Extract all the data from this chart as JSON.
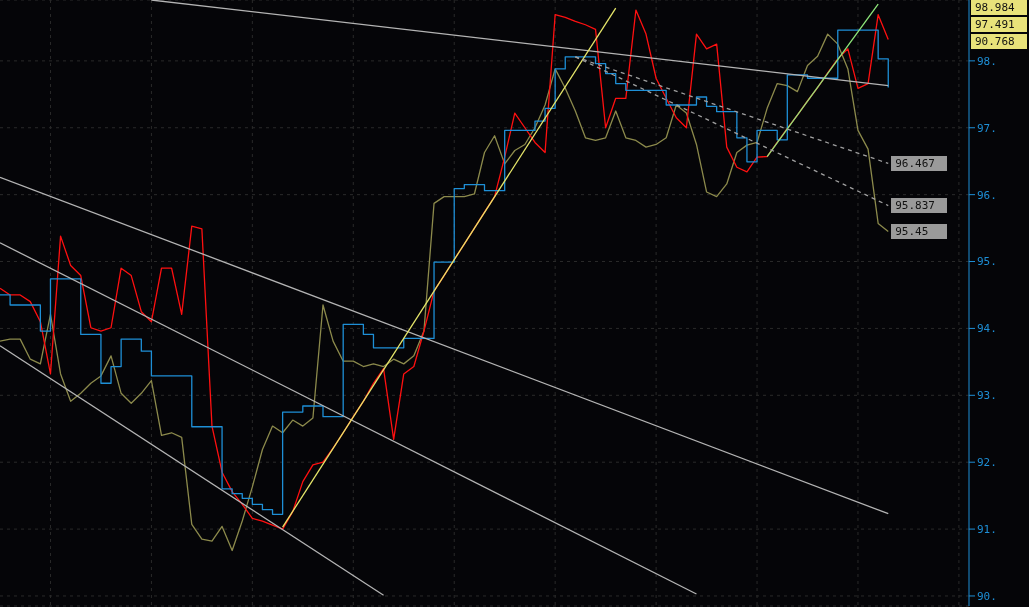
{
  "chart_data": {
    "type": "line",
    "categories": [
      null,
      null,
      null,
      null,
      null,
      null,
      null,
      null,
      null,
      null,
      null,
      null,
      null,
      null,
      null,
      null,
      null,
      null,
      null,
      null,
      null,
      null,
      null,
      null,
      null,
      null,
      null,
      null,
      null,
      null,
      null,
      null,
      null,
      null,
      null,
      null,
      null,
      null,
      null,
      null,
      null,
      null,
      null,
      null,
      null,
      null,
      null,
      null,
      null,
      null,
      null,
      null,
      null,
      null,
      null,
      null,
      null,
      null,
      null,
      null,
      null,
      null,
      null,
      null,
      null,
      null,
      null,
      null,
      null,
      null,
      null,
      null,
      null,
      null,
      null,
      null,
      null,
      null,
      null,
      null,
      null,
      null,
      null,
      null,
      null,
      null,
      null,
      null,
      null
    ],
    "series": [
      {
        "type": "line",
        "color": "#8c8a4c",
        "values": [
          93.81,
          93.84,
          93.84,
          93.54,
          93.47,
          94.21,
          93.32,
          92.91,
          93.03,
          93.18,
          93.29,
          93.59,
          93.03,
          92.88,
          93.03,
          93.22,
          92.4,
          92.44,
          92.37,
          91.07,
          90.85,
          90.82,
          91.04,
          90.68,
          91.12,
          91.63,
          92.19,
          92.54,
          92.44,
          92.63,
          92.54,
          92.66,
          94.35,
          93.81,
          93.51,
          93.51,
          93.43,
          93.47,
          93.43,
          93.54,
          93.47,
          93.59,
          93.96,
          95.87,
          95.97,
          95.97,
          95.97,
          96.01,
          96.63,
          96.88,
          96.46,
          96.66,
          96.75,
          97.0,
          97.34,
          97.88,
          97.59,
          97.25,
          96.85,
          96.81,
          96.85,
          97.25,
          96.85,
          96.81,
          96.71,
          96.75,
          96.85,
          97.34,
          97.22,
          96.75,
          96.04,
          95.97,
          96.16,
          96.63,
          96.74,
          96.78,
          97.29,
          97.66,
          97.63,
          97.54,
          97.93,
          98.07,
          98.4,
          98.25,
          97.88,
          96.96,
          96.68,
          95.57,
          95.45
        ],
        "value_labels": [
          null,
          null,
          null,
          null,
          null,
          null,
          null,
          null,
          null,
          null,
          null,
          null,
          null,
          null,
          null,
          null,
          null,
          null,
          null,
          null,
          null,
          null,
          null,
          null,
          null,
          null,
          null,
          null,
          null,
          null,
          null,
          null,
          null,
          null,
          null,
          null,
          null,
          null,
          null,
          null,
          null,
          null,
          null,
          null,
          null,
          null,
          null,
          null,
          null,
          null,
          null,
          null,
          null,
          null,
          null,
          null,
          null,
          null,
          null,
          null,
          null,
          null,
          null,
          null,
          null,
          null,
          null,
          null,
          null,
          null,
          null,
          null,
          null,
          null,
          null,
          null,
          null,
          null,
          null,
          null,
          null,
          null,
          null,
          null,
          null,
          null,
          null,
          null,
          "95.45"
        ]
      },
      {
        "type": "line",
        "color": "#ff1010",
        "values": [
          94.6,
          94.5,
          94.5,
          94.4,
          94.1,
          93.32,
          95.38,
          94.94,
          94.79,
          94.01,
          93.96,
          94.01,
          94.9,
          94.79,
          94.25,
          94.1,
          94.9,
          94.9,
          94.21,
          95.53,
          95.49,
          92.54,
          91.85,
          91.56,
          91.37,
          91.16,
          91.12,
          91.06,
          91.0,
          91.26,
          91.71,
          91.96,
          92.0,
          92.21,
          92.44,
          92.68,
          92.91,
          93.18,
          93.4,
          92.34,
          93.32,
          93.43,
          93.96,
          94.56,
          94.79,
          95.03,
          95.26,
          95.5,
          95.74,
          95.97,
          96.56,
          97.22,
          97.0,
          96.78,
          96.63,
          98.69,
          98.65,
          98.59,
          98.54,
          98.47,
          97.0,
          97.44,
          97.44,
          98.76,
          98.4,
          97.74,
          97.44,
          97.15,
          97.0,
          98.4,
          98.18,
          98.25,
          96.71,
          96.41,
          96.34,
          96.56,
          96.57,
          96.78,
          96.99,
          97.19,
          97.4,
          97.6,
          97.82,
          98.03,
          98.18,
          97.59,
          97.66,
          98.69,
          98.32
        ]
      },
      {
        "type": "step",
        "color": "#1e8fd6",
        "values": [
          94.5,
          94.35,
          94.35,
          94.35,
          93.96,
          94.74,
          94.74,
          94.74,
          93.91,
          93.91,
          93.18,
          93.43,
          93.84,
          93.84,
          93.66,
          93.29,
          93.29,
          93.29,
          93.29,
          92.53,
          92.53,
          92.53,
          91.6,
          91.53,
          91.46,
          91.37,
          91.29,
          91.22,
          92.75,
          92.75,
          92.84,
          92.84,
          92.68,
          92.68,
          94.06,
          94.06,
          93.91,
          93.71,
          93.71,
          93.71,
          93.85,
          93.85,
          93.85,
          94.99,
          94.99,
          96.09,
          96.15,
          96.15,
          96.06,
          96.06,
          96.96,
          96.96,
          96.96,
          97.1,
          97.29,
          97.88,
          98.06,
          98.06,
          98.06,
          97.96,
          97.81,
          97.66,
          97.56,
          97.56,
          97.56,
          97.56,
          97.34,
          97.34,
          97.34,
          97.46,
          97.32,
          97.24,
          97.24,
          96.85,
          96.49,
          96.96,
          96.96,
          96.82,
          97.79,
          97.79,
          97.74,
          97.74,
          97.74,
          98.46,
          98.46,
          98.46,
          98.46,
          98.03,
          97.6
        ]
      },
      {
        "type": "line",
        "color": "#b4b4b4",
        "values": [
          96.26,
          null,
          null,
          null,
          null,
          null,
          null,
          null,
          null,
          null,
          null,
          null,
          null,
          null,
          null,
          null,
          null,
          null,
          null,
          null,
          null,
          null,
          null,
          null,
          null,
          null,
          null,
          null,
          null,
          null,
          null,
          null,
          null,
          null,
          null,
          null,
          null,
          null,
          null,
          null,
          null,
          null,
          null,
          null,
          null,
          null,
          null,
          null,
          null,
          null,
          null,
          null,
          null,
          null,
          null,
          null,
          null,
          null,
          null,
          null,
          null,
          null,
          null,
          null,
          null,
          null,
          null,
          null,
          null,
          null,
          null,
          null,
          null,
          null,
          null,
          null,
          null,
          null,
          null,
          null,
          null,
          null,
          null,
          null,
          null,
          null,
          null,
          null,
          91.23
        ]
      },
      {
        "type": "line",
        "color": "#b4b4b4",
        "values": [
          95.28,
          null,
          null,
          null,
          null,
          null,
          null,
          null,
          null,
          null,
          null,
          null,
          null,
          null,
          null,
          null,
          null,
          null,
          null,
          null,
          null,
          null,
          null,
          null,
          null,
          null,
          null,
          null,
          null,
          null,
          null,
          null,
          null,
          null,
          null,
          null,
          null,
          null,
          null,
          null,
          null,
          null,
          null,
          null,
          null,
          null,
          null,
          null,
          null,
          null,
          null,
          null,
          null,
          null,
          null,
          null,
          null,
          null,
          null,
          null,
          null,
          null,
          null,
          null,
          null,
          null,
          null,
          null,
          null,
          90.03,
          null,
          null,
          null,
          null,
          null,
          null,
          null,
          null,
          null,
          null,
          null,
          null,
          null,
          null,
          null,
          null,
          null,
          null,
          null
        ]
      },
      {
        "type": "line",
        "color": "#b4b4b4",
        "values": [
          93.74,
          null,
          null,
          null,
          null,
          null,
          null,
          null,
          null,
          null,
          null,
          null,
          null,
          null,
          null,
          null,
          null,
          null,
          null,
          null,
          null,
          null,
          null,
          null,
          null,
          null,
          null,
          null,
          null,
          null,
          null,
          null,
          null,
          null,
          null,
          null,
          null,
          null,
          90.01,
          null,
          null,
          null,
          null,
          null,
          null,
          null,
          null,
          null,
          null,
          null,
          null,
          null,
          null,
          null,
          null,
          null,
          null,
          null,
          null,
          null,
          null,
          null,
          null,
          null,
          null,
          null,
          null,
          null,
          null,
          null,
          null,
          null,
          null,
          null,
          null,
          null,
          null,
          null,
          null,
          null,
          null,
          null,
          null,
          null,
          null,
          null,
          null,
          null,
          null
        ]
      },
      {
        "type": "line",
        "color": "#b4b4b4",
        "values": [
          null,
          null,
          null,
          null,
          null,
          null,
          null,
          null,
          null,
          null,
          null,
          null,
          null,
          null,
          null,
          98.91,
          null,
          null,
          null,
          null,
          null,
          null,
          null,
          null,
          null,
          null,
          null,
          null,
          null,
          null,
          null,
          null,
          null,
          null,
          null,
          null,
          null,
          null,
          null,
          null,
          null,
          null,
          null,
          null,
          null,
          null,
          null,
          null,
          null,
          null,
          null,
          null,
          null,
          null,
          null,
          null,
          null,
          null,
          null,
          null,
          null,
          null,
          null,
          null,
          null,
          null,
          null,
          null,
          null,
          null,
          null,
          null,
          null,
          null,
          null,
          null,
          null,
          null,
          null,
          null,
          null,
          null,
          null,
          null,
          null,
          null,
          null,
          null,
          97.63
        ]
      },
      {
        "type": "line",
        "color": "#e6e66a",
        "values": [
          null,
          null,
          null,
          null,
          null,
          null,
          null,
          null,
          null,
          null,
          null,
          null,
          null,
          null,
          null,
          null,
          null,
          null,
          null,
          null,
          null,
          null,
          null,
          null,
          null,
          null,
          null,
          null,
          91.03,
          null,
          null,
          null,
          null,
          null,
          null,
          null,
          null,
          null,
          null,
          null,
          null,
          null,
          null,
          null,
          null,
          null,
          null,
          null,
          null,
          null,
          null,
          null,
          null,
          null,
          null,
          null,
          null,
          null,
          null,
          null,
          null,
          98.79,
          null,
          null,
          null,
          null,
          null,
          null,
          null,
          null,
          null,
          null,
          null,
          null,
          null,
          null,
          null,
          null,
          null,
          null,
          null,
          null,
          null,
          null,
          null,
          null,
          null,
          null,
          null
        ]
      },
      {
        "type": "line",
        "color": "#8ee67a",
        "values": [
          null,
          null,
          null,
          null,
          null,
          null,
          null,
          null,
          null,
          null,
          null,
          null,
          null,
          null,
          null,
          null,
          null,
          null,
          null,
          null,
          null,
          null,
          null,
          null,
          null,
          null,
          null,
          null,
          null,
          null,
          null,
          null,
          null,
          null,
          null,
          null,
          null,
          null,
          null,
          null,
          null,
          null,
          null,
          null,
          null,
          null,
          null,
          null,
          null,
          null,
          null,
          null,
          null,
          null,
          null,
          null,
          null,
          null,
          null,
          null,
          null,
          null,
          null,
          null,
          null,
          null,
          null,
          null,
          null,
          null,
          null,
          null,
          null,
          null,
          null,
          null,
          96.57,
          null,
          null,
          null,
          null,
          null,
          null,
          null,
          null,
          null,
          null,
          98.85,
          null
        ]
      },
      {
        "type": "line",
        "color": "#a0a0a0",
        "line_style": "dashed",
        "values": [
          null,
          null,
          null,
          null,
          null,
          null,
          null,
          null,
          null,
          null,
          null,
          null,
          null,
          null,
          null,
          null,
          null,
          null,
          null,
          null,
          null,
          null,
          null,
          null,
          null,
          null,
          null,
          null,
          null,
          null,
          null,
          null,
          null,
          null,
          null,
          null,
          null,
          null,
          null,
          null,
          null,
          null,
          null,
          null,
          null,
          null,
          null,
          null,
          null,
          null,
          null,
          null,
          null,
          null,
          null,
          null,
          null,
          98.06,
          null,
          null,
          null,
          null,
          null,
          null,
          null,
          null,
          null,
          null,
          null,
          null,
          null,
          null,
          null,
          null,
          null,
          null,
          null,
          null,
          null,
          null,
          null,
          null,
          null,
          null,
          null,
          null,
          null,
          null,
          96.467
        ],
        "value_labels": [
          null,
          null,
          null,
          null,
          null,
          null,
          null,
          null,
          null,
          null,
          null,
          null,
          null,
          null,
          null,
          null,
          null,
          null,
          null,
          null,
          null,
          null,
          null,
          null,
          null,
          null,
          null,
          null,
          null,
          null,
          null,
          null,
          null,
          null,
          null,
          null,
          null,
          null,
          null,
          null,
          null,
          null,
          null,
          null,
          null,
          null,
          null,
          null,
          null,
          null,
          null,
          null,
          null,
          null,
          null,
          null,
          null,
          null,
          null,
          null,
          null,
          null,
          null,
          null,
          null,
          null,
          null,
          null,
          null,
          null,
          null,
          null,
          null,
          null,
          null,
          null,
          null,
          null,
          null,
          null,
          null,
          null,
          null,
          null,
          null,
          null,
          null,
          null,
          "96.467"
        ]
      },
      {
        "type": "line",
        "color": "#a0a0a0",
        "line_style": "dashed",
        "values": [
          null,
          null,
          null,
          null,
          null,
          null,
          null,
          null,
          null,
          null,
          null,
          null,
          null,
          null,
          null,
          null,
          null,
          null,
          null,
          null,
          null,
          null,
          null,
          null,
          null,
          null,
          null,
          null,
          null,
          null,
          null,
          null,
          null,
          null,
          null,
          null,
          null,
          null,
          null,
          null,
          null,
          null,
          null,
          null,
          null,
          null,
          null,
          null,
          null,
          null,
          null,
          null,
          null,
          null,
          null,
          null,
          null,
          98.06,
          null,
          null,
          null,
          null,
          null,
          null,
          null,
          null,
          null,
          null,
          null,
          null,
          null,
          null,
          null,
          null,
          null,
          null,
          null,
          null,
          null,
          null,
          null,
          null,
          null,
          null,
          null,
          null,
          null,
          null,
          95.837
        ],
        "value_labels": [
          null,
          null,
          null,
          null,
          null,
          null,
          null,
          null,
          null,
          null,
          null,
          null,
          null,
          null,
          null,
          null,
          null,
          null,
          null,
          null,
          null,
          null,
          null,
          null,
          null,
          null,
          null,
          null,
          null,
          null,
          null,
          null,
          null,
          null,
          null,
          null,
          null,
          null,
          null,
          null,
          null,
          null,
          null,
          null,
          null,
          null,
          null,
          null,
          null,
          null,
          null,
          null,
          null,
          null,
          null,
          null,
          null,
          null,
          null,
          null,
          null,
          null,
          null,
          null,
          null,
          null,
          null,
          null,
          null,
          null,
          null,
          null,
          null,
          null,
          null,
          null,
          null,
          null,
          null,
          null,
          null,
          null,
          null,
          null,
          null,
          null,
          null,
          null,
          "95.837"
        ]
      }
    ],
    "ylim": [
      89.85,
      98.91
    ],
    "yticks": [
      {
        "value": 90,
        "label": "90."
      },
      {
        "value": 91,
        "label": "91."
      },
      {
        "value": 92,
        "label": "92."
      },
      {
        "value": 93,
        "label": "93."
      },
      {
        "value": 94,
        "label": "94."
      },
      {
        "value": 95,
        "label": "95."
      },
      {
        "value": 96,
        "label": "96."
      },
      {
        "value": 97,
        "label": "97."
      },
      {
        "value": 98,
        "label": "98."
      }
    ],
    "annotations": [
      "98.984",
      "97.491",
      "90.768"
    ],
    "grid": true,
    "marker": "none",
    "line_style": "solid"
  }
}
